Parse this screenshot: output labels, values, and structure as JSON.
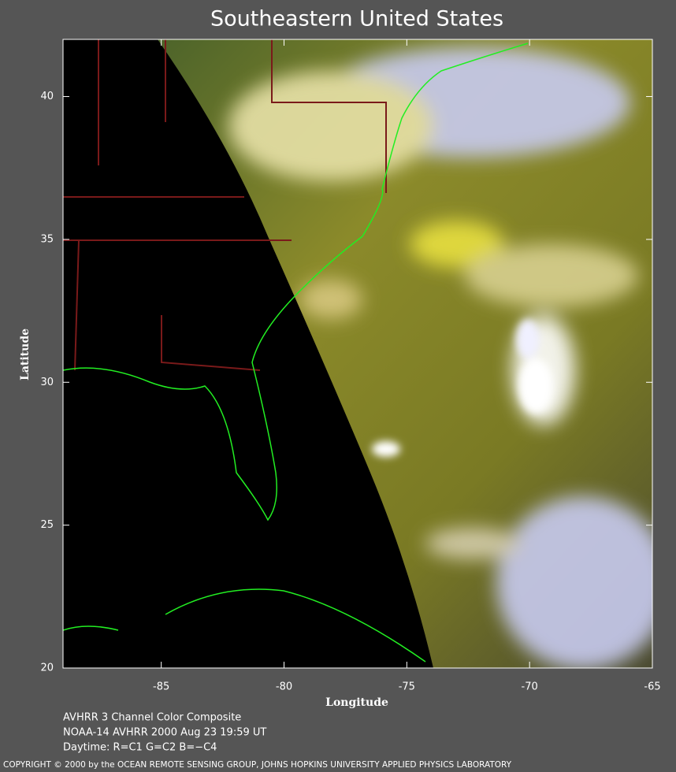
{
  "title": "Southeastern United States",
  "x_axis": {
    "label": "Longitude",
    "lim": [
      -89,
      -65
    ],
    "ticks": [
      -85,
      -80,
      -75,
      -70,
      -65
    ]
  },
  "y_axis": {
    "label": "Latitude",
    "lim": [
      20,
      42
    ],
    "ticks": [
      20,
      25,
      30,
      35,
      40
    ]
  },
  "captions": [
    "AVHRR 3 Channel Color Composite",
    "NOAA-14 AVHRR 2000 Aug 23 19:59 UT",
    "Daytime: R=C1 G=C2 B=−C4"
  ],
  "copyright": "COPYRIGHT © 2000 by the OCEAN REMOTE SENSING GROUP, JOHNS HOPKINS UNIVERSITY APPLIED PHYSICS LABORATORY"
}
